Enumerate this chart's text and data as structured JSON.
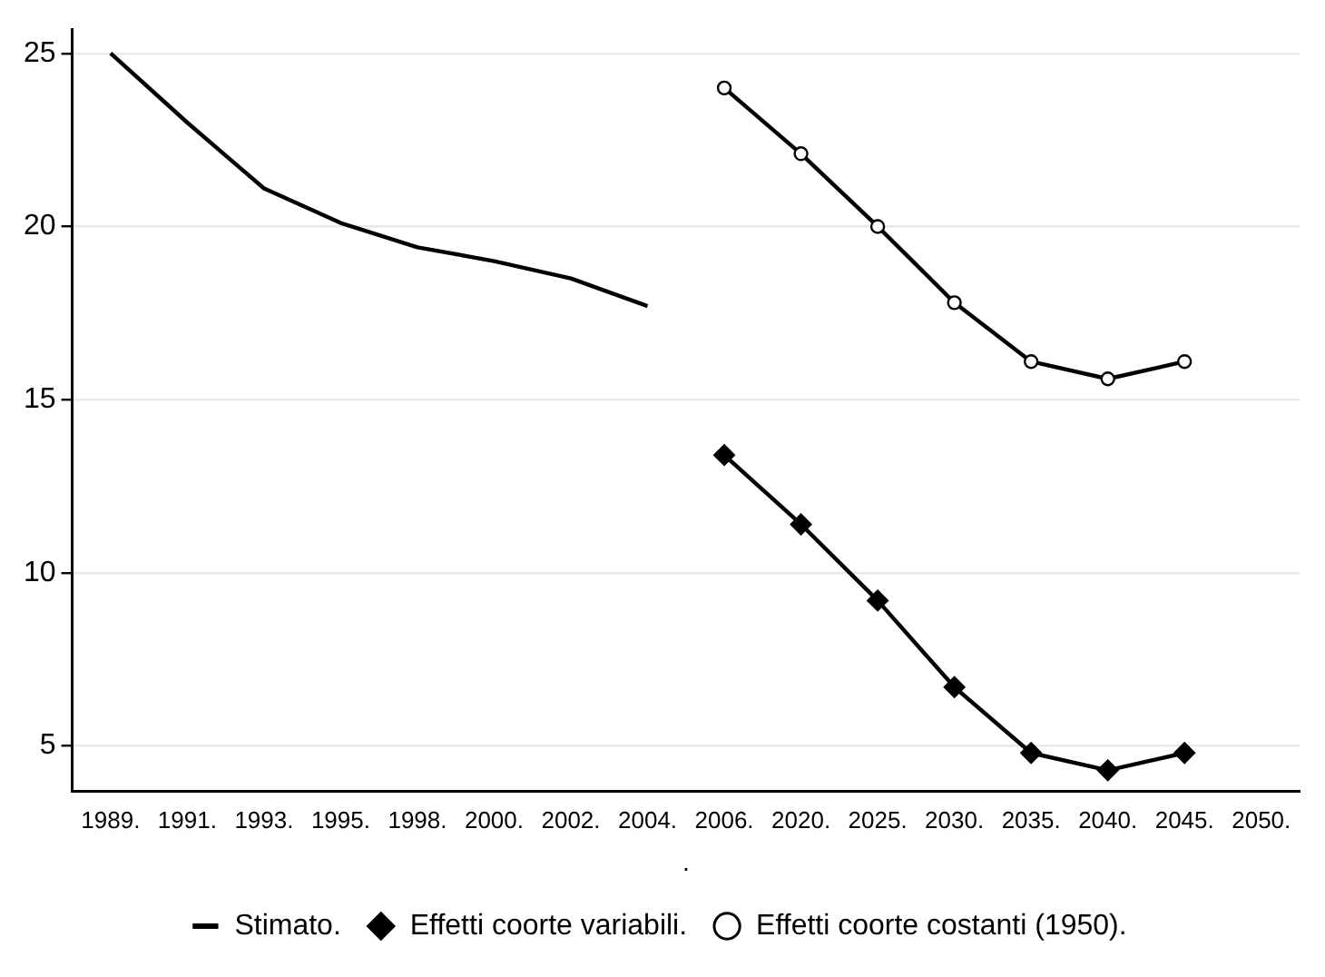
{
  "chart_data": {
    "type": "line",
    "xlabel": ".",
    "categories": [
      "1989.",
      "1991.",
      "1993.",
      "1995.",
      "1998.",
      "2000.",
      "2002.",
      "2004.",
      "2006.",
      "2020.",
      "2025.",
      "2030.",
      "2035.",
      "2040.",
      "2045.",
      "2050."
    ],
    "series": [
      {
        "name": "Stimato.",
        "color": "#000000",
        "marker": "none",
        "values": [
          25,
          23,
          21.1,
          20.1,
          19.4,
          19.0,
          18.5,
          17.7,
          null,
          null,
          null,
          null,
          null,
          null,
          null,
          null
        ]
      },
      {
        "name": "Effetti coorte variabili.",
        "color": "#000000",
        "marker": "diamond",
        "values": [
          null,
          null,
          null,
          null,
          null,
          null,
          null,
          null,
          13.4,
          11.4,
          9.2,
          6.7,
          4.8,
          4.3,
          4.8,
          null
        ]
      },
      {
        "name": "Effetti coorte costanti (1950).",
        "color": "#000000",
        "marker": "circle",
        "values": [
          null,
          null,
          null,
          null,
          null,
          null,
          null,
          null,
          24,
          22.1,
          20,
          17.8,
          16.1,
          15.6,
          16.1,
          null
        ]
      }
    ],
    "ylim": [
      3.7,
      25.7
    ],
    "yticks": [
      5,
      10,
      15,
      20,
      25
    ],
    "grid": "y",
    "legend": "bottom",
    "line_style": "solid"
  }
}
